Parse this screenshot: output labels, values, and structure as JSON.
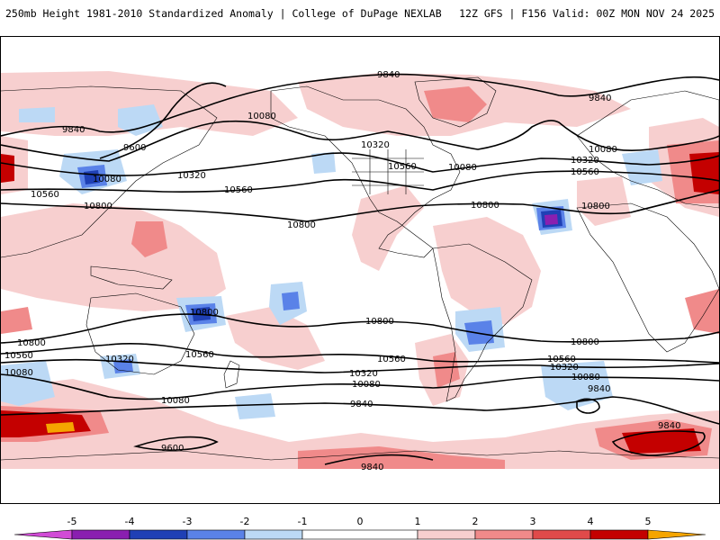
{
  "header": {
    "title": "250mb Height 1981-2010 Standardized Anomaly | College of DuPage NEXLAB",
    "run_info": "12Z GFS | F156 Valid: 00Z MON NOV 24 2025"
  },
  "colors": {
    "neg5": "#d14bd6",
    "neg4": "#8a1fb0",
    "neg3": "#1f40b5",
    "neg2": "#5a82e8",
    "neg1": "#bcd9f5",
    "pos1": "#f7cfcf",
    "pos2": "#f08a8a",
    "pos3": "#e04a4a",
    "pos4": "#c40000",
    "pos5": "#f5a500"
  },
  "contours": {
    "values": [
      "9600",
      "9840",
      "10080",
      "10320",
      "10560",
      "10800"
    ]
  },
  "contour_labels": [
    {
      "text": "9840"
    },
    {
      "text": "9840"
    },
    {
      "text": "9840"
    },
    {
      "text": "10080"
    },
    {
      "text": "9600"
    },
    {
      "text": "10320"
    },
    {
      "text": "10080"
    },
    {
      "text": "10560"
    },
    {
      "text": "10560"
    },
    {
      "text": "10800"
    },
    {
      "text": "10800"
    },
    {
      "text": "10320"
    },
    {
      "text": "10560"
    },
    {
      "text": "10080"
    },
    {
      "text": "10080"
    },
    {
      "text": "10320"
    },
    {
      "text": "10560"
    },
    {
      "text": "10800"
    },
    {
      "text": "10800"
    },
    {
      "text": "10800"
    },
    {
      "text": "10800"
    },
    {
      "text": "10800"
    },
    {
      "text": "10560"
    },
    {
      "text": "10560"
    },
    {
      "text": "10560"
    },
    {
      "text": "10320"
    },
    {
      "text": "10320"
    },
    {
      "text": "10080"
    },
    {
      "text": "10080"
    },
    {
      "text": "10320"
    },
    {
      "text": "10080"
    },
    {
      "text": "10560"
    },
    {
      "text": "9840"
    },
    {
      "text": "10080"
    },
    {
      "text": "9840"
    },
    {
      "text": "9600"
    },
    {
      "text": "9840"
    },
    {
      "text": "9840"
    },
    {
      "text": "10080"
    },
    {
      "text": "10800"
    },
    {
      "text": "10560"
    },
    {
      "text": "10320"
    },
    {
      "text": "10080"
    }
  ],
  "colorbar": {
    "ticks": [
      "-5",
      "-4",
      "-3",
      "-2",
      "-1",
      "0",
      "1",
      "2",
      "3",
      "4",
      "5"
    ]
  }
}
